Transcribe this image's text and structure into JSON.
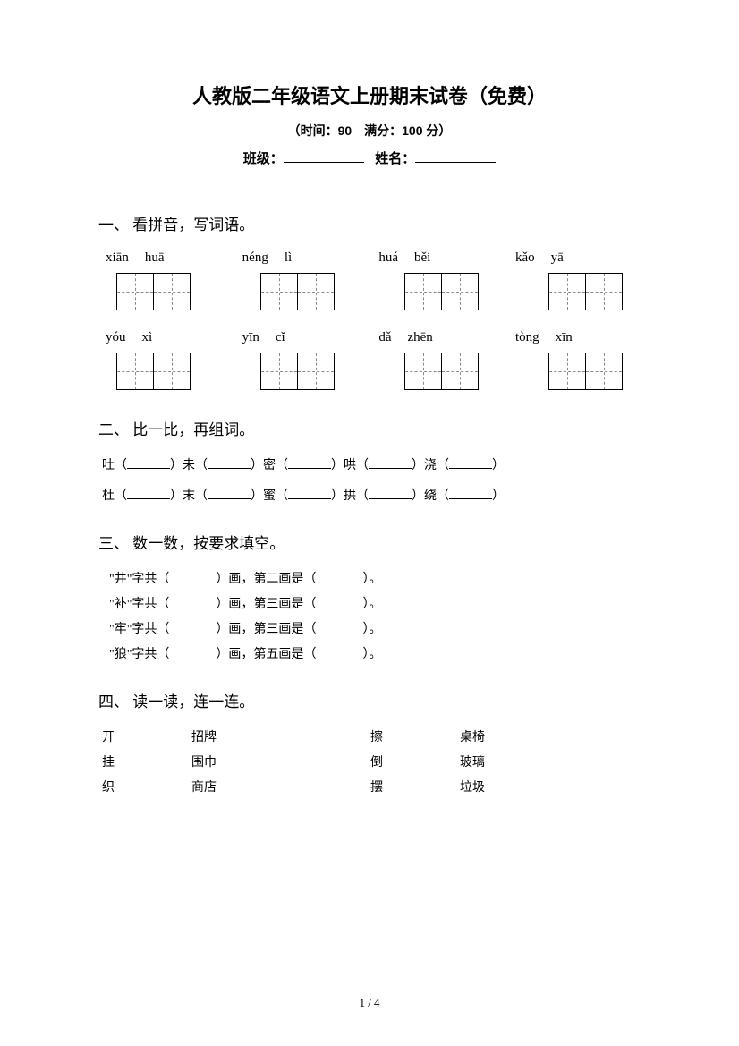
{
  "header": {
    "title": "人教版二年级语文上册期末试卷（免费）",
    "subtitle": "（时间：90　满分：100 分）",
    "class_label": "班级：",
    "name_label": "姓名："
  },
  "section1": {
    "heading": "一、 看拼音，写词语。",
    "row1": [
      {
        "s1": "xiān",
        "s2": "huā"
      },
      {
        "s1": "néng",
        "s2": "lì"
      },
      {
        "s1": "huá",
        "s2": "běi"
      },
      {
        "s1": "kǎo",
        "s2": "yā"
      }
    ],
    "row2": [
      {
        "s1": "yóu",
        "s2": "xì"
      },
      {
        "s1": "yīn",
        "s2": "cǐ"
      },
      {
        "s1": "dǎ",
        "s2": "zhēn"
      },
      {
        "s1": "tòng",
        "s2": "xīn"
      }
    ]
  },
  "section2": {
    "heading": "二、 比一比，再组词。",
    "lines": [
      [
        "吐",
        "未",
        "密",
        "哄",
        "浇"
      ],
      [
        "杜",
        "末",
        "蜜",
        "拱",
        "绕"
      ]
    ]
  },
  "section3": {
    "heading": "三、 数一数，按要求填空。",
    "items": [
      {
        "char": "井",
        "stroke_q": "第二画是"
      },
      {
        "char": "补",
        "stroke_q": "第三画是"
      },
      {
        "char": "牢",
        "stroke_q": "第三画是"
      },
      {
        "char": "狼",
        "stroke_q": "第五画是"
      }
    ]
  },
  "section4": {
    "heading": "四、 读一读，连一连。",
    "rows": [
      {
        "a": "开",
        "b": "招牌",
        "c": "擦",
        "d": "桌椅"
      },
      {
        "a": "挂",
        "b": "围巾",
        "c": "倒",
        "d": "玻璃"
      },
      {
        "a": "织",
        "b": "商店",
        "c": "摆",
        "d": "垃圾"
      }
    ]
  },
  "footer": {
    "page": "1 / 4"
  }
}
